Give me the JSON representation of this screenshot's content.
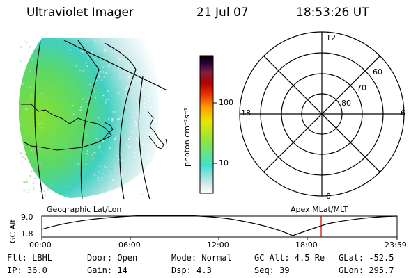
{
  "header": {
    "instrument": "Ultraviolet Imager",
    "date": "21 Jul 07",
    "time": "18:53:26 UT"
  },
  "colorbar": {
    "unit_label": "photon cm⁻²s⁻¹",
    "ticks": [
      "100",
      "10"
    ],
    "scale": "log",
    "colors": [
      "#ffffff",
      "#c8e6e6",
      "#40e0d0",
      "#8ce640",
      "#e6e600",
      "#ffa000",
      "#e63000",
      "#b40000",
      "#802040",
      "#300040",
      "#000000"
    ]
  },
  "polar_plot": {
    "mlt_labels": {
      "top": "12",
      "left": "18",
      "right": "6",
      "bottom": "0"
    },
    "lat_labels": [
      "60",
      "70",
      "80"
    ]
  },
  "timeline": {
    "left_title": "Geographic Lat/Lon",
    "right_title": "Apex MLat/MLT",
    "ylabel": "GC Alt",
    "yticks": [
      "9.0",
      "1.8"
    ],
    "xticks": [
      "00:00",
      "06:00",
      "12:00",
      "18:00",
      "23:59"
    ],
    "marker_color": "#c00000"
  },
  "info": {
    "filter": "Flt: LBHL",
    "ip": "IP: 36.0",
    "door": "Door: Open",
    "gain": "Gain: 14",
    "mode": "Mode: Normal",
    "dsp": "Dsp:     4.3",
    "gc_alt": "GC Alt: 4.5 Re",
    "seq": "Seq: 39",
    "glat": "GLat: -52.5",
    "glon": "GLon: 295.7"
  }
}
